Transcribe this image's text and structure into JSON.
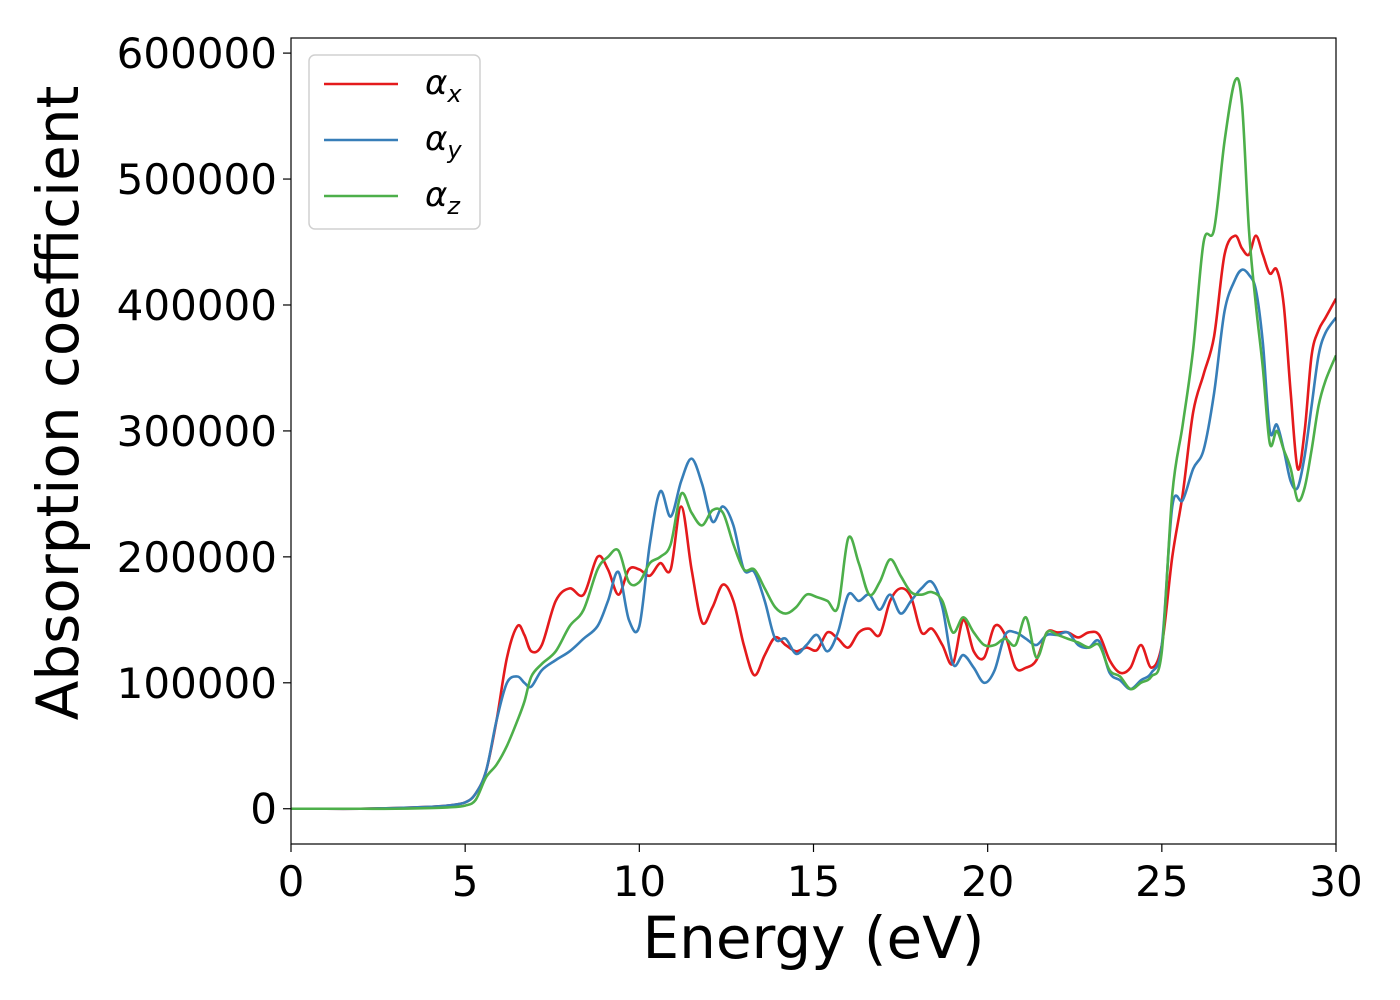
{
  "chart_data": {
    "type": "line",
    "title": "",
    "xlabel": "Energy (eV)",
    "ylabel": "Absorption coefficient",
    "xlim": [
      0,
      30
    ],
    "ylim": [
      -28000,
      612000
    ],
    "xticks": [
      0,
      5,
      10,
      15,
      20,
      25,
      30
    ],
    "yticks": [
      0,
      100000,
      200000,
      300000,
      400000,
      500000,
      600000
    ],
    "grid": false,
    "legend_position": "top-left",
    "x": [
      0,
      1,
      2,
      3,
      4,
      4.5,
      5,
      5.3,
      5.6,
      5.9,
      6.2,
      6.5,
      6.7,
      6.9,
      7.2,
      7.6,
      8.0,
      8.4,
      8.8,
      9.1,
      9.4,
      9.7,
      10.0,
      10.3,
      10.6,
      10.9,
      11.2,
      11.5,
      11.8,
      12.1,
      12.4,
      12.7,
      13.0,
      13.3,
      13.6,
      13.9,
      14.2,
      14.5,
      14.8,
      15.1,
      15.4,
      15.7,
      16.0,
      16.3,
      16.6,
      16.9,
      17.2,
      17.5,
      17.8,
      18.1,
      18.4,
      18.7,
      19.0,
      19.3,
      19.6,
      19.9,
      20.2,
      20.5,
      20.8,
      21.1,
      21.4,
      21.7,
      22.0,
      22.3,
      22.6,
      22.9,
      23.2,
      23.5,
      23.8,
      24.1,
      24.4,
      24.7,
      25.0,
      25.3,
      25.6,
      25.9,
      26.2,
      26.5,
      26.8,
      27.1,
      27.3,
      27.5,
      27.7,
      27.9,
      28.1,
      28.3,
      28.5,
      28.7,
      28.9,
      29.1,
      29.3,
      29.5,
      29.7,
      30.0
    ],
    "series": [
      {
        "name": "x",
        "color": "#e41a1c",
        "values": [
          0,
          0,
          0,
          500,
          1500,
          2500,
          5000,
          12000,
          30000,
          70000,
          120000,
          145000,
          138000,
          125000,
          130000,
          165000,
          175000,
          170000,
          200000,
          190000,
          170000,
          190000,
          190000,
          185000,
          195000,
          190000,
          240000,
          190000,
          148000,
          160000,
          178000,
          165000,
          130000,
          106000,
          122000,
          136000,
          130000,
          125000,
          128000,
          126000,
          140000,
          135000,
          128000,
          140000,
          143000,
          138000,
          165000,
          175000,
          168000,
          140000,
          143000,
          130000,
          115000,
          150000,
          125000,
          120000,
          145000,
          138000,
          112000,
          112000,
          118000,
          140000,
          140000,
          140000,
          136000,
          140000,
          138000,
          118000,
          108000,
          112000,
          130000,
          112000,
          130000,
          200000,
          250000,
          315000,
          345000,
          375000,
          440000,
          455000,
          445000,
          440000,
          455000,
          440000,
          425000,
          428000,
          400000,
          330000,
          270000,
          300000,
          360000,
          380000,
          390000,
          405000
        ]
      },
      {
        "name": "y",
        "color": "#377eb8",
        "values": [
          0,
          0,
          0,
          500,
          1500,
          2500,
          5000,
          12000,
          30000,
          70000,
          100000,
          105000,
          100000,
          97000,
          110000,
          118000,
          125000,
          135000,
          145000,
          165000,
          188000,
          150000,
          145000,
          210000,
          252000,
          232000,
          260000,
          278000,
          258000,
          228000,
          240000,
          225000,
          190000,
          188000,
          165000,
          135000,
          135000,
          123000,
          130000,
          138000,
          125000,
          140000,
          170000,
          165000,
          170000,
          158000,
          170000,
          155000,
          165000,
          175000,
          180000,
          160000,
          115000,
          122000,
          112000,
          100000,
          110000,
          138000,
          140000,
          135000,
          130000,
          138000,
          138000,
          140000,
          130000,
          128000,
          133000,
          108000,
          102000,
          95000,
          102000,
          108000,
          130000,
          240000,
          245000,
          270000,
          285000,
          330000,
          395000,
          420000,
          428000,
          424000,
          412000,
          370000,
          300000,
          305000,
          285000,
          260000,
          255000,
          280000,
          320000,
          360000,
          378000,
          390000
        ]
      },
      {
        "name": "z",
        "color": "#4daf4a",
        "values": [
          0,
          0,
          0,
          0,
          500,
          1000,
          2500,
          7000,
          25000,
          35000,
          50000,
          70000,
          85000,
          105000,
          115000,
          125000,
          145000,
          158000,
          190000,
          200000,
          205000,
          180000,
          180000,
          195000,
          200000,
          210000,
          250000,
          235000,
          225000,
          237000,
          235000,
          210000,
          190000,
          190000,
          175000,
          160000,
          155000,
          160000,
          170000,
          168000,
          165000,
          160000,
          215000,
          195000,
          170000,
          180000,
          198000,
          185000,
          172000,
          170000,
          172000,
          165000,
          140000,
          152000,
          140000,
          130000,
          130000,
          135000,
          130000,
          152000,
          120000,
          140000,
          138000,
          135000,
          132000,
          128000,
          130000,
          110000,
          105000,
          95000,
          100000,
          105000,
          125000,
          250000,
          305000,
          365000,
          450000,
          460000,
          530000,
          578000,
          560000,
          460000,
          400000,
          350000,
          290000,
          300000,
          285000,
          270000,
          245000,
          255000,
          285000,
          320000,
          340000,
          360000
        ]
      }
    ]
  }
}
